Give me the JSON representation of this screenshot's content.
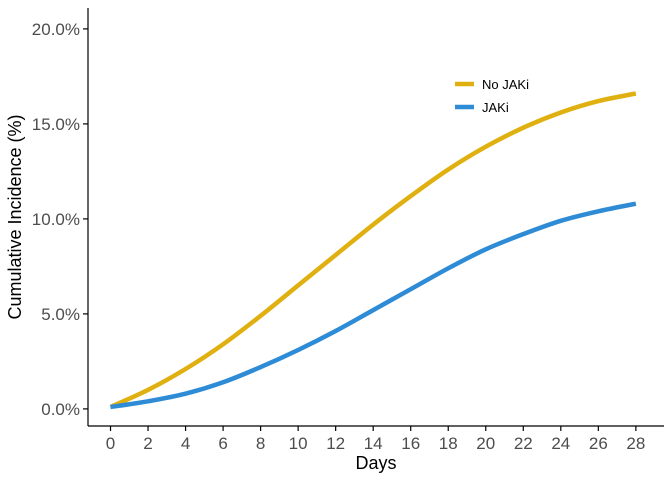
{
  "chart_data": {
    "type": "line",
    "xlabel": "Days",
    "ylabel": "Cumulative Incidence (%)",
    "xlim": [
      -1.2,
      29.5
    ],
    "ylim": [
      -0.009,
      0.211
    ],
    "x_ticks": [
      0,
      2,
      4,
      6,
      8,
      10,
      12,
      14,
      16,
      18,
      20,
      22,
      24,
      26,
      28
    ],
    "y_ticks": [
      0,
      0.05,
      0.1,
      0.15,
      0.2
    ],
    "y_tick_labels": [
      "0.0%",
      "5.0%",
      "10.0%",
      "15.0%",
      "20.0%"
    ],
    "grid": false,
    "legend_position": "top-right",
    "x": [
      0,
      2,
      4,
      6,
      8,
      10,
      12,
      14,
      16,
      18,
      20,
      22,
      24,
      26,
      28
    ],
    "series": [
      {
        "name": "No JAKi",
        "color": "#E0B010",
        "values": [
          0.001,
          0.01,
          0.021,
          0.034,
          0.049,
          0.065,
          0.081,
          0.097,
          0.112,
          0.126,
          0.138,
          0.148,
          0.156,
          0.162,
          0.166
        ]
      },
      {
        "name": "JAKi",
        "color": "#2E8BD6",
        "values": [
          0.001,
          0.004,
          0.008,
          0.014,
          0.022,
          0.031,
          0.041,
          0.052,
          0.063,
          0.074,
          0.084,
          0.092,
          0.099,
          0.104,
          0.108
        ]
      }
    ]
  }
}
